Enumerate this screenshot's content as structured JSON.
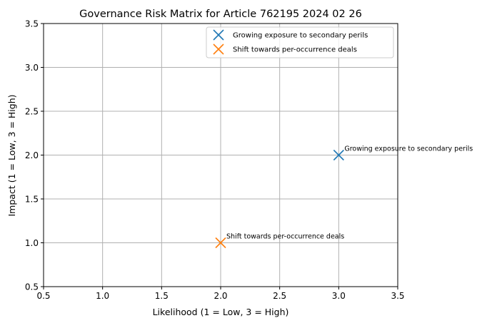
{
  "chart_data": {
    "type": "scatter",
    "title": "Governance Risk Matrix for Article 762195 2024 02 26",
    "xlabel": "Likelihood (1 = Low, 3 = High)",
    "ylabel": "Impact (1 = Low, 3 = High)",
    "xlim": [
      0.5,
      3.5
    ],
    "ylim": [
      0.5,
      3.5
    ],
    "xticks": [
      "0.5",
      "1.0",
      "1.5",
      "2.0",
      "2.5",
      "3.0",
      "3.5"
    ],
    "yticks": [
      "0.5",
      "1.0",
      "1.5",
      "2.0",
      "2.5",
      "3.0",
      "3.5"
    ],
    "grid": true,
    "legend_position": "top-right",
    "marker": "x",
    "series": [
      {
        "name": "Growing exposure to secondary perils",
        "x": 3,
        "y": 2,
        "color": "#1f77b4",
        "annotation": "Growing exposure to secondary perils"
      },
      {
        "name": "Shift towards per-occurrence deals",
        "x": 2,
        "y": 1,
        "color": "#ff7f0e",
        "annotation": "Shift towards per-occurrence deals"
      }
    ]
  }
}
